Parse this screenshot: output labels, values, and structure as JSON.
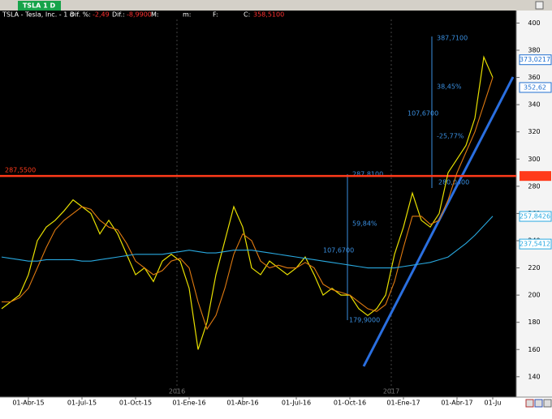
{
  "header": {
    "tab": "TSLA 1 D",
    "symbol": "TSLA - Tesla, Inc. - 1 d",
    "pct_label": "Dif. %:",
    "pct": "-2,49",
    "diff_label": "Dif.:",
    "diff": "-8,9900",
    "max_label": "M:",
    "min_label": "m:",
    "f_label": "F:",
    "c_label": "C:",
    "close": "358,5100"
  },
  "chart_data": {
    "type": "line",
    "categories": [
      null,
      null,
      null,
      "01-Abr-15",
      null,
      null,
      null,
      null,
      null,
      "01-Jul-15",
      null,
      null,
      null,
      null,
      null,
      "01-Oct-15",
      null,
      null,
      null,
      null,
      null,
      "01-Ene-16",
      null,
      null,
      null,
      null,
      null,
      "01-Abr-16",
      null,
      null,
      null,
      null,
      null,
      "01-Jul-16",
      null,
      null,
      null,
      null,
      null,
      "01-Oct-16",
      null,
      null,
      null,
      null,
      null,
      "01-Ene-17",
      null,
      null,
      null,
      null,
      null,
      "01-Abr-17",
      null,
      null,
      null,
      "01-Ju"
    ],
    "series": [
      {
        "color": "#e8e000",
        "values": [
          190,
          195,
          200,
          215,
          240,
          250,
          255,
          262,
          270,
          265,
          260,
          245,
          255,
          245,
          230,
          215,
          220,
          210,
          225,
          230,
          225,
          205,
          160,
          180,
          215,
          240,
          265,
          250,
          220,
          215,
          225,
          220,
          215,
          220,
          228,
          215,
          200,
          205,
          200,
          200,
          190,
          185,
          190,
          200,
          230,
          250,
          275,
          255,
          250,
          260,
          290,
          300,
          310,
          330,
          375,
          360
        ]
      },
      {
        "color": "#e07a10",
        "values": [
          195,
          195,
          198,
          205,
          220,
          235,
          248,
          255,
          260,
          265,
          263,
          255,
          250,
          248,
          238,
          225,
          220,
          215,
          218,
          225,
          227,
          220,
          195,
          175,
          185,
          205,
          230,
          245,
          240,
          225,
          220,
          222,
          220,
          220,
          224,
          220,
          208,
          204,
          202,
          200,
          195,
          190,
          188,
          193,
          210,
          235,
          258,
          258,
          252,
          255,
          270,
          290,
          305,
          320,
          340,
          360
        ]
      },
      {
        "color": "#29a9e0",
        "values": [
          228,
          227,
          226,
          225,
          225,
          226,
          226,
          226,
          226,
          225,
          225,
          226,
          227,
          228,
          229,
          230,
          230,
          230,
          230,
          231,
          232,
          233,
          232,
          231,
          231,
          232,
          233,
          233,
          233,
          232,
          231,
          230,
          229,
          228,
          227,
          226,
          225,
          224,
          223,
          222,
          221,
          220,
          220,
          220,
          220,
          221,
          222,
          223,
          224,
          226,
          228,
          233,
          238,
          244,
          251,
          258
        ]
      }
    ],
    "ylim": [
      125,
      408
    ],
    "yticks": [
      140,
      160,
      180,
      200,
      220,
      240,
      260,
      280,
      300,
      320,
      340,
      360,
      380,
      400
    ],
    "hline": {
      "value": 287.55,
      "label": "287,5500",
      "color": "#ff3a1a"
    },
    "last_values": [
      {
        "value": 373.0217,
        "label": "373,0217",
        "color": "#1f6fd0"
      },
      {
        "value": 352.62,
        "label": "352,62",
        "color": "#1f6fd0"
      },
      {
        "value": 257.8426,
        "label": "257,8426",
        "color": "#29a9e0"
      },
      {
        "value": 237.5412,
        "label": "237,5412",
        "color": "#29a9e0"
      }
    ],
    "year_marks": [
      "2016",
      "2017"
    ],
    "annotations": [
      "387,7100",
      "38,45%",
      "107,6700",
      "-25,77%",
      "280,0400",
      "287,8100",
      "59,84%",
      "107,6700",
      "179,9000"
    ]
  }
}
